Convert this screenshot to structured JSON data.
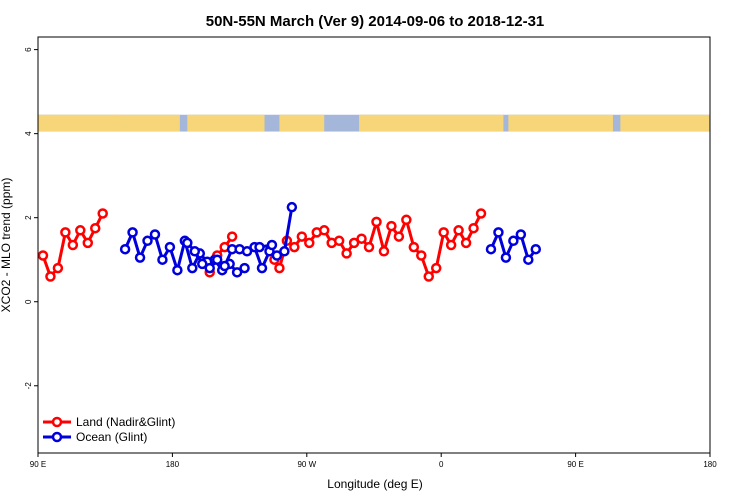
{
  "chart_data": {
    "type": "line",
    "title": "50N-55N March (Ver 9)   2014-09-06 to 2018-12-31",
    "xlabel": "Longitude (deg E)",
    "ylabel": "XCO2 - MLO trend (ppm)",
    "xlim": [
      -90,
      180
    ],
    "ylim": [
      -3.6,
      6.3
    ],
    "xticks": [
      -90,
      -36,
      18,
      72,
      126,
      180
    ],
    "xtick_labels": [
      "90 E",
      "180",
      "90 W",
      "0",
      "90 E",
      "180"
    ],
    "yticks": [
      -2,
      0,
      2,
      4,
      6
    ],
    "ytick_labels": [
      "-2",
      "0",
      "2",
      "4",
      "6"
    ],
    "grid": false,
    "legend_position": "bottom-left",
    "land_ocean_mask_band": {
      "y_range": [
        4.05,
        4.45
      ],
      "land_color": "#f7d679",
      "ocean_color": "#a4b7db",
      "land_intervals": [
        [
          -90,
          -58
        ],
        [
          -60,
          -33
        ],
        [
          -30,
          1
        ],
        [
          7,
          25
        ],
        [
          39,
          97
        ],
        [
          99,
          141
        ],
        [
          144,
          180
        ]
      ]
    },
    "series": [
      {
        "name": "Land (Nadir&Glint)",
        "color": "#ff0000",
        "segments": [
          [
            [
              -88,
              1.1
            ],
            [
              -85,
              0.6
            ],
            [
              -82,
              0.8
            ],
            [
              -79,
              1.65
            ],
            [
              -76,
              1.35
            ],
            [
              -73,
              1.7
            ],
            [
              -70,
              1.4
            ],
            [
              -67,
              1.75
            ],
            [
              -64,
              2.1
            ]
          ],
          [
            [
              -21,
              0.7
            ],
            [
              -18,
              1.1
            ],
            [
              -15,
              1.3
            ],
            [
              -12,
              1.55
            ]
          ],
          [
            [
              5,
              1.0
            ],
            [
              7,
              0.8
            ],
            [
              10,
              1.45
            ],
            [
              13,
              1.3
            ],
            [
              16,
              1.55
            ],
            [
              19,
              1.4
            ],
            [
              22,
              1.65
            ],
            [
              25,
              1.7
            ],
            [
              28,
              1.4
            ],
            [
              31,
              1.45
            ],
            [
              34,
              1.15
            ],
            [
              37,
              1.4
            ],
            [
              40,
              1.5
            ],
            [
              43,
              1.3
            ],
            [
              46,
              1.9
            ],
            [
              49,
              1.2
            ],
            [
              52,
              1.8
            ],
            [
              55,
              1.55
            ],
            [
              58,
              1.95
            ],
            [
              61,
              1.3
            ],
            [
              64,
              1.1
            ],
            [
              67,
              0.6
            ],
            [
              70,
              0.8
            ],
            [
              73,
              1.65
            ],
            [
              76,
              1.35
            ],
            [
              79,
              1.7
            ],
            [
              82,
              1.4
            ],
            [
              85,
              1.75
            ],
            [
              88,
              2.1
            ]
          ]
        ]
      },
      {
        "name": "Ocean (Glint)",
        "color": "#0000dd",
        "segments": [
          [
            [
              -55,
              1.25
            ],
            [
              -52,
              1.65
            ],
            [
              -49,
              1.05
            ],
            [
              -46,
              1.45
            ],
            [
              -43,
              1.6
            ],
            [
              -40,
              1.0
            ],
            [
              -37,
              1.3
            ],
            [
              -34,
              0.75
            ],
            [
              -31,
              1.45
            ],
            [
              -28,
              0.8
            ],
            [
              -25,
              1.15
            ],
            [
              -22,
              0.95
            ],
            [
              -19,
              1.0
            ],
            [
              -16,
              0.75
            ],
            [
              -13,
              0.9
            ],
            [
              -10,
              0.7
            ],
            [
              -7,
              0.8
            ]
          ],
          [
            [
              -30,
              1.4
            ],
            [
              -27,
              1.2
            ],
            [
              -24,
              0.9
            ],
            [
              -21,
              0.8
            ],
            [
              -18,
              1.0
            ],
            [
              -15,
              0.85
            ],
            [
              -12,
              1.25
            ],
            [
              -9,
              1.25
            ],
            [
              -6,
              1.2
            ],
            [
              -3,
              1.3
            ],
            [
              0,
              0.8
            ],
            [
              3,
              1.2
            ],
            [
              6,
              1.1
            ],
            [
              9,
              1.2
            ],
            [
              12,
              2.25
            ]
          ],
          [
            [
              -1,
              1.3
            ],
            [
              4,
              1.35
            ]
          ],
          [
            [
              92,
              1.25
            ],
            [
              95,
              1.65
            ],
            [
              98,
              1.05
            ],
            [
              101,
              1.45
            ],
            [
              104,
              1.6
            ],
            [
              107,
              1.0
            ],
            [
              110,
              1.25
            ]
          ]
        ]
      }
    ]
  }
}
